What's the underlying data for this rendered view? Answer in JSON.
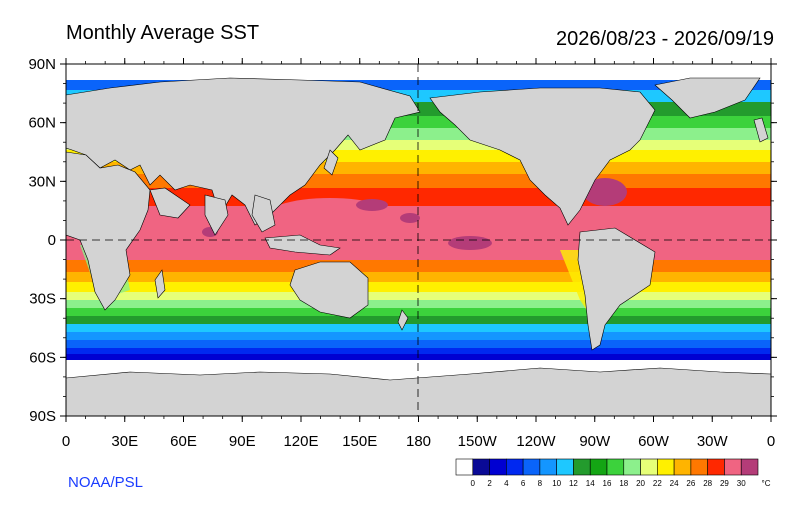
{
  "title": "Monthly Average SST",
  "date_range": "2026/08/23 - 2026/09/19",
  "credit": "NOAA/PSL",
  "lat_ticks": [
    "90N",
    "60N",
    "30N",
    "0",
    "30S",
    "60S",
    "90S"
  ],
  "lon_ticks": [
    "0",
    "30E",
    "60E",
    "90E",
    "120E",
    "150E",
    "180",
    "150W",
    "120W",
    "90W",
    "60W",
    "30W",
    "0"
  ],
  "colorbar": {
    "levels": [
      "0",
      "2",
      "4",
      "6",
      "8",
      "10",
      "12",
      "14",
      "16",
      "18",
      "20",
      "22",
      "24",
      "26",
      "28",
      "29",
      "30"
    ],
    "unit": "°C",
    "colors": [
      "#ffffff",
      "#0a0a96",
      "#0000d2",
      "#0028f0",
      "#0a64fa",
      "#1496ff",
      "#1ec8ff",
      "#239b2d",
      "#14a514",
      "#3cd23c",
      "#8cf08c",
      "#e6ff78",
      "#fff000",
      "#ffb400",
      "#ff7800",
      "#ff2800",
      "#f06482",
      "#b43c78"
    ]
  }
}
